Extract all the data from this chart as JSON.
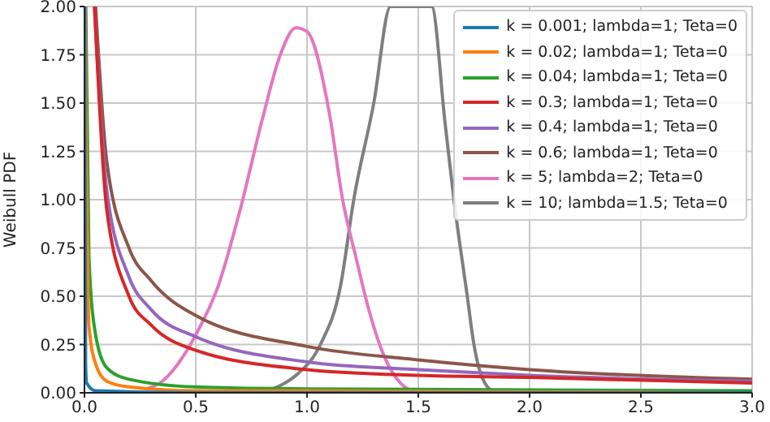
{
  "chart_data": {
    "type": "line",
    "ylabel": "Weibull PDF",
    "xlim": [
      0,
      3
    ],
    "ylim": [
      0,
      2
    ],
    "xticks": [
      {
        "value": 0,
        "label": "0.0"
      },
      {
        "value": 0.5,
        "label": "0.5"
      },
      {
        "value": 1,
        "label": "1.0"
      },
      {
        "value": 1.5,
        "label": "1.5"
      },
      {
        "value": 2,
        "label": "2.0"
      },
      {
        "value": 2.5,
        "label": "2.5"
      },
      {
        "value": 3,
        "label": "3.0"
      }
    ],
    "yticks": [
      {
        "value": 0,
        "label": "0.00"
      },
      {
        "value": 0.25,
        "label": "0.25"
      },
      {
        "value": 0.5,
        "label": "0.50"
      },
      {
        "value": 0.75,
        "label": "0.75"
      },
      {
        "value": 1,
        "label": "1.00"
      },
      {
        "value": 1.25,
        "label": "1.25"
      },
      {
        "value": 1.5,
        "label": "1.50"
      },
      {
        "value": 1.75,
        "label": "1.75"
      },
      {
        "value": 2,
        "label": "2.00"
      }
    ],
    "grid": true,
    "legend": "top right",
    "marker": "none",
    "line_style": "solid",
    "series": [
      {
        "name": "k = 0.001; lambda=1; Teta=0",
        "color": "#1f77b4",
        "x": [
          0.001,
          0.005,
          0.01,
          0.05,
          0.5,
          3
        ],
        "values": [
          2,
          0.15,
          0.05,
          0.01,
          0,
          0
        ]
      },
      {
        "name": "k = 0.02; lambda=1; Teta=0",
        "color": "#ff7f0e",
        "x": [
          0.003,
          0.02,
          0.05,
          0.1,
          0.2,
          0.5,
          1,
          3
        ],
        "values": [
          2,
          0.35,
          0.15,
          0.06,
          0.03,
          0.01,
          0.01,
          0
        ]
      },
      {
        "name": "k = 0.04; lambda=1; Teta=0",
        "color": "#2ca02c",
        "x": [
          0.006,
          0.02,
          0.05,
          0.1,
          0.2,
          0.5,
          1,
          3
        ],
        "values": [
          2,
          0.7,
          0.3,
          0.13,
          0.07,
          0.03,
          0.02,
          0.01
        ]
      },
      {
        "name": "k = 0.3; lambda=1; Teta=0",
        "color": "#d62728",
        "x": [
          0.045,
          0.1,
          0.2,
          0.3,
          0.5,
          1,
          1.5,
          2,
          3
        ],
        "values": [
          2,
          0.95,
          0.5,
          0.35,
          0.22,
          0.12,
          0.09,
          0.08,
          0.05
        ]
      },
      {
        "name": "k = 0.4; lambda=1; Teta=0",
        "color": "#9467bd",
        "x": [
          0.045,
          0.1,
          0.2,
          0.3,
          0.5,
          1,
          1.5,
          2,
          3
        ],
        "values": [
          2,
          1.05,
          0.6,
          0.43,
          0.29,
          0.16,
          0.12,
          0.09,
          0.06
        ]
      },
      {
        "name": "k = 0.6; lambda=1; Teta=0",
        "color": "#8c564b",
        "x": [
          0.05,
          0.1,
          0.2,
          0.3,
          0.5,
          1,
          1.5,
          2,
          3
        ],
        "values": [
          2,
          1.2,
          0.75,
          0.58,
          0.4,
          0.24,
          0.17,
          0.12,
          0.07
        ]
      },
      {
        "name": "k = 5; lambda=2; Teta=0",
        "color": "#e377c2",
        "x": [
          0.28,
          0.35,
          0.45,
          0.5,
          0.6,
          0.7,
          0.8,
          0.88,
          0.95,
          1,
          1.1,
          1.16,
          1.22,
          1.28,
          1.35,
          1.42,
          1.5
        ],
        "values": [
          0.02,
          0.06,
          0.2,
          0.3,
          0.55,
          0.95,
          1.42,
          1.75,
          1.89,
          1.87,
          1.45,
          1,
          0.7,
          0.42,
          0.18,
          0.05,
          0
        ]
      },
      {
        "name": "k = 10; lambda=1.5; Teta=0",
        "color": "#7f7f7f",
        "x": [
          0.79,
          0.9,
          0.96,
          1.06,
          1.15,
          1.21,
          1.3,
          1.375,
          1.56,
          1.62,
          1.66,
          1.72,
          1.75,
          1.78,
          1.84
        ],
        "values": [
          0,
          0.05,
          0.1,
          0.25,
          0.55,
          1,
          1.5,
          2,
          2,
          1.4,
          1,
          0.5,
          0.25,
          0.1,
          0
        ]
      }
    ]
  }
}
